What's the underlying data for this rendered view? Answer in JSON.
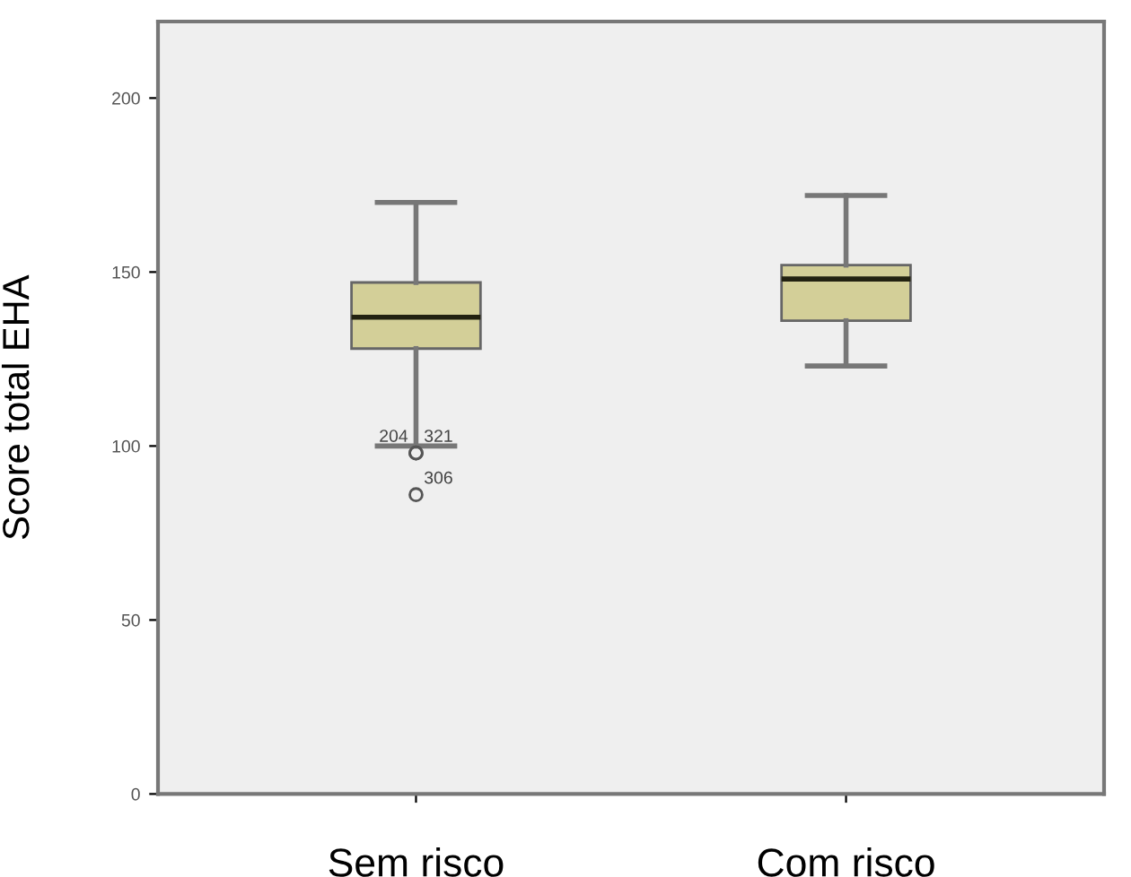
{
  "chart_data": {
    "type": "box",
    "categories": [
      "Sem risco",
      "Com risco"
    ],
    "ylabel": "Score total EHA",
    "ylim": [
      0,
      222
    ],
    "yticks": [
      0,
      50,
      100,
      150,
      200
    ],
    "grid": false,
    "color": "#d3cf98",
    "boxes": [
      {
        "low": 100,
        "q1": 128,
        "median": 137,
        "q3": 147,
        "high": 170,
        "outliers": [
          98,
          98,
          86
        ]
      },
      {
        "low": 123,
        "q1": 136,
        "median": 148,
        "q3": 152,
        "high": 172
      }
    ],
    "annotations": [
      "204",
      "321",
      "306"
    ]
  }
}
